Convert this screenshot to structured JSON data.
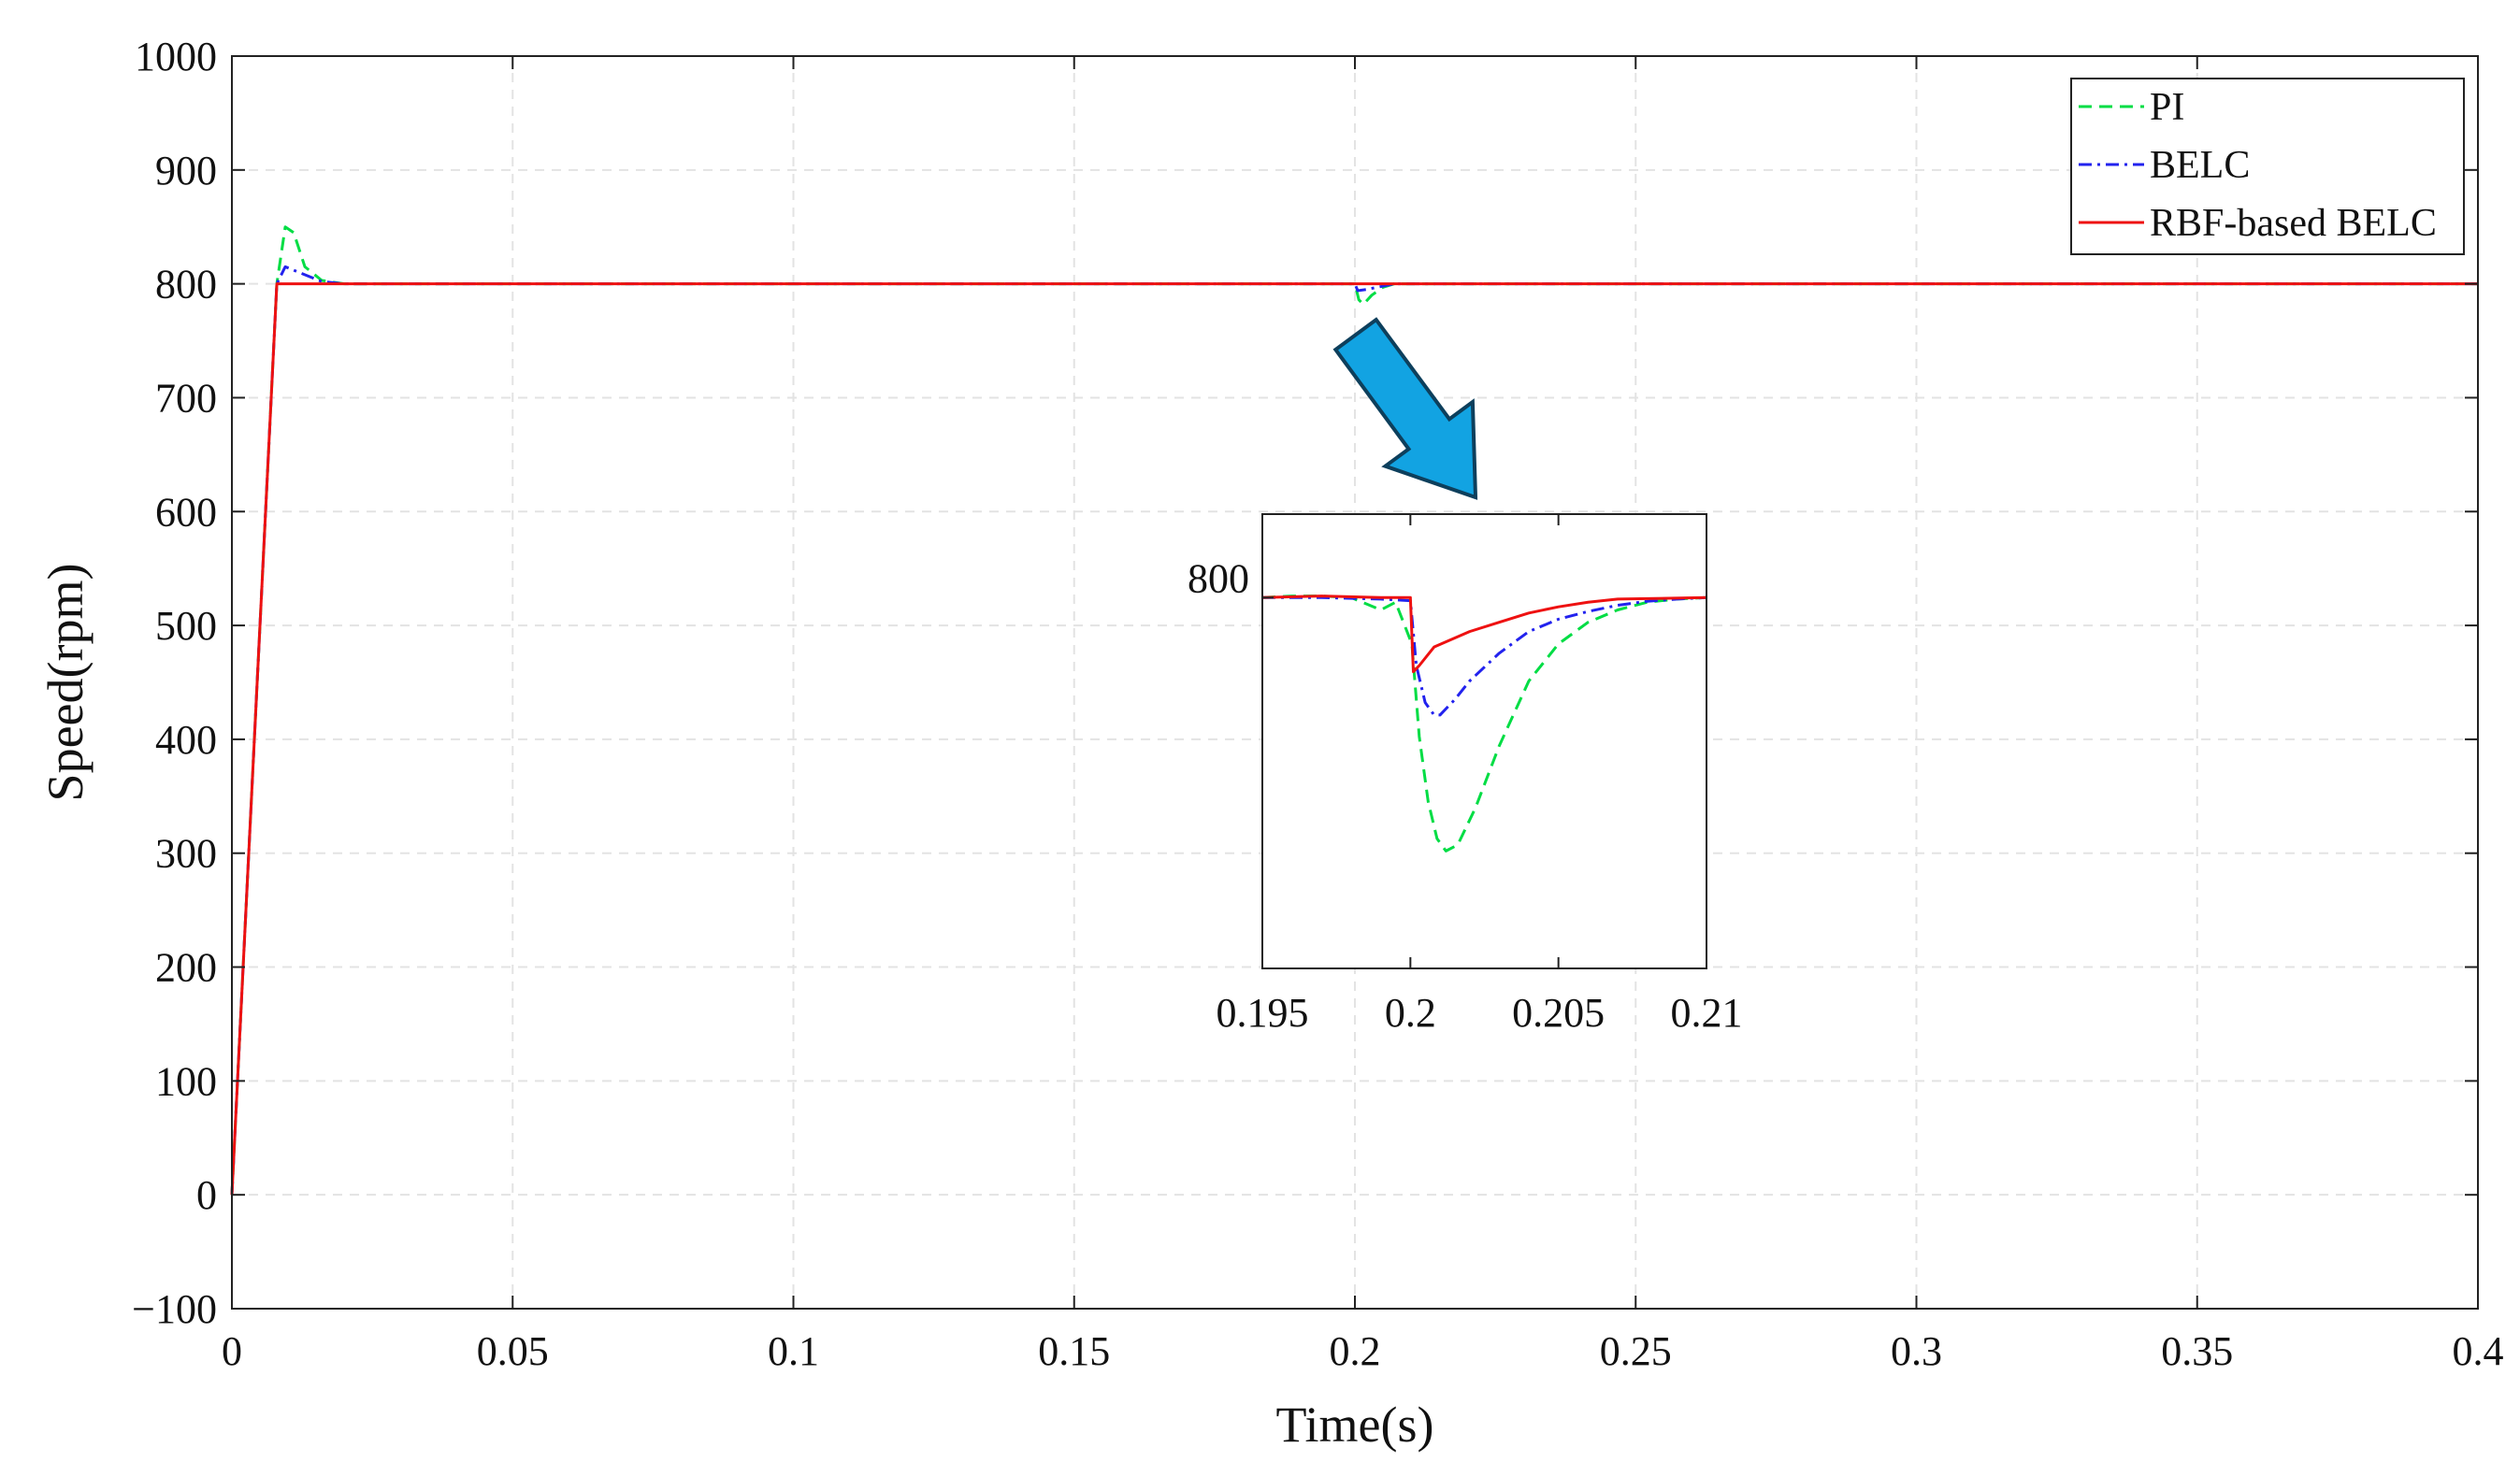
{
  "chart_data": [
    {
      "type": "line",
      "title": "",
      "xlabel": "Time(s)",
      "ylabel": "Speed(rpm)",
      "xlim": [
        0,
        0.4
      ],
      "ylim": [
        -100,
        1000
      ],
      "xticks": [
        0,
        0.05,
        0.1,
        0.15,
        0.2,
        0.25,
        0.3,
        0.35,
        0.4
      ],
      "xtick_labels": [
        "0",
        "0.05",
        "0.1",
        "0.15",
        "0.2",
        "0.25",
        "0.3",
        "0.35",
        "0.4"
      ],
      "yticks": [
        -100,
        0,
        100,
        200,
        300,
        400,
        500,
        600,
        700,
        800,
        900,
        1000
      ],
      "ytick_labels": [
        "−100",
        "0",
        "100",
        "200",
        "300",
        "400",
        "500",
        "600",
        "700",
        "800",
        "900",
        "1000"
      ],
      "grid": true,
      "legend_position": "top-right",
      "series": [
        {
          "name": "PI",
          "color": "#00dd44",
          "style": "dashed",
          "points": [
            [
              0,
              0
            ],
            [
              0.008,
              800
            ],
            [
              0.0095,
              850
            ],
            [
              0.011,
              845
            ],
            [
              0.013,
              815
            ],
            [
              0.016,
              803
            ],
            [
              0.02,
              800
            ],
            [
              0.2,
              800
            ],
            [
              0.2007,
              786
            ],
            [
              0.2015,
              782
            ],
            [
              0.203,
              790
            ],
            [
              0.205,
              797
            ],
            [
              0.207,
              800
            ],
            [
              0.4,
              800
            ]
          ]
        },
        {
          "name": "BELC",
          "color": "#2222ee",
          "style": "dashdot",
          "points": [
            [
              0,
              0
            ],
            [
              0.008,
              800
            ],
            [
              0.0095,
              815
            ],
            [
              0.012,
              810
            ],
            [
              0.016,
              802
            ],
            [
              0.02,
              800
            ],
            [
              0.2,
              800
            ],
            [
              0.2005,
              794
            ],
            [
              0.202,
              795
            ],
            [
              0.205,
              798
            ],
            [
              0.207,
              800
            ],
            [
              0.4,
              800
            ]
          ]
        },
        {
          "name": "RBF-based BELC",
          "color": "#ee1111",
          "style": "solid",
          "points": [
            [
              0,
              0
            ],
            [
              0.008,
              800
            ],
            [
              0.4,
              800
            ]
          ]
        }
      ],
      "annotation": "arrow pointing from the disturbance at t = 0.2 s to the zoomed inset"
    },
    {
      "type": "line",
      "role": "inset-zoom",
      "xlim": [
        0.195,
        0.21
      ],
      "xticks": [
        0.195,
        0.2,
        0.205,
        0.21
      ],
      "xtick_labels": [
        "0.195",
        "0.2",
        "0.205",
        "0.21"
      ],
      "ytick_labels": [
        "800"
      ],
      "ylim": [
        788,
        802.7
      ],
      "series": [
        {
          "name": "PI",
          "color": "#00dd44",
          "style": "dashed",
          "points": [
            [
              0.195,
              800
            ],
            [
              0.196,
              800.05
            ],
            [
              0.197,
              800.05
            ],
            [
              0.198,
              800
            ],
            [
              0.199,
              799.6
            ],
            [
              0.1995,
              799.85
            ],
            [
              0.20005,
              798.5
            ],
            [
              0.2003,
              795.5
            ],
            [
              0.2006,
              793.4
            ],
            [
              0.2009,
              792.2
            ],
            [
              0.2012,
              791.8
            ],
            [
              0.2016,
              792.0
            ],
            [
              0.2022,
              793.2
            ],
            [
              0.203,
              795.2
            ],
            [
              0.204,
              797.3
            ],
            [
              0.205,
              798.5
            ],
            [
              0.206,
              799.2
            ],
            [
              0.207,
              799.6
            ],
            [
              0.208,
              799.85
            ],
            [
              0.209,
              799.95
            ],
            [
              0.21,
              800
            ]
          ]
        },
        {
          "name": "BELC",
          "color": "#2222ee",
          "style": "dashdot",
          "points": [
            [
              0.195,
              800
            ],
            [
              0.197,
              800
            ],
            [
              0.199,
              799.95
            ],
            [
              0.2,
              799.9
            ],
            [
              0.2002,
              797.8
            ],
            [
              0.2005,
              796.6
            ],
            [
              0.2008,
              796.2
            ],
            [
              0.201,
              796.2
            ],
            [
              0.2015,
              796.7
            ],
            [
              0.202,
              797.3
            ],
            [
              0.203,
              798.2
            ],
            [
              0.204,
              798.9
            ],
            [
              0.205,
              799.3
            ],
            [
              0.206,
              799.55
            ],
            [
              0.207,
              799.75
            ],
            [
              0.208,
              799.88
            ],
            [
              0.209,
              799.95
            ],
            [
              0.21,
              800
            ]
          ]
        },
        {
          "name": "RBF-based BELC",
          "color": "#ee1111",
          "style": "solid",
          "points": [
            [
              0.195,
              800
            ],
            [
              0.197,
              800.05
            ],
            [
              0.199,
              800
            ],
            [
              0.2,
              800
            ],
            [
              0.2001,
              797.6
            ],
            [
              0.2003,
              797.8
            ],
            [
              0.2008,
              798.4
            ],
            [
              0.202,
              798.9
            ],
            [
              0.203,
              799.2
            ],
            [
              0.204,
              799.5
            ],
            [
              0.205,
              799.7
            ],
            [
              0.206,
              799.85
            ],
            [
              0.207,
              799.95
            ],
            [
              0.21,
              800
            ]
          ]
        }
      ]
    }
  ]
}
